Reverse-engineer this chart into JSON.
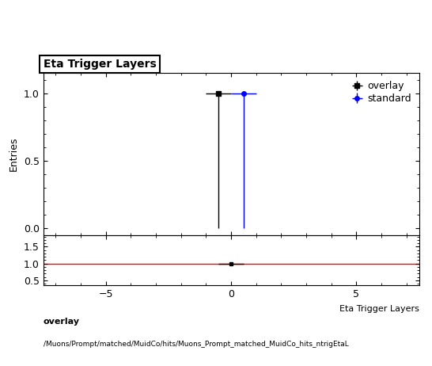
{
  "title": "Eta Trigger Layers",
  "xlabel": "Eta Trigger Layers",
  "ylabel": "Entries",
  "xlim": [
    -7.5,
    7.5
  ],
  "ylim_main": [
    -0.05,
    1.15
  ],
  "ylim_ratio": [
    0.35,
    1.85
  ],
  "ratio_yticks": [
    0.5,
    1.0,
    1.5
  ],
  "overlay_x": -0.5,
  "overlay_y": 1.0,
  "overlay_xerr": 0.5,
  "overlay_yerr_low": 1.0,
  "overlay_yerr_high": 0.0,
  "standard_x": 0.5,
  "standard_y": 1.0,
  "standard_xerr": 0.5,
  "standard_yerr_low": 1.0,
  "standard_yerr_high": 0.0,
  "overlay_color": "#000000",
  "standard_color": "#0000ff",
  "ratio_x": 0.0,
  "ratio_y": 1.0,
  "ratio_xerr_low": 0.5,
  "ratio_xerr_high": 0.5,
  "ratio_yerr_low": 0.0,
  "ratio_yerr_high": 0.0,
  "ratio_line_color": "#ff0000",
  "footer_line1": "overlay",
  "footer_line2": "/Muons/Prompt/matched/MuidCo/hits/Muons_Prompt_matched_MuidCo_hits_ntrigEtaL",
  "main_xticks": [
    -5,
    0,
    5
  ],
  "ratio_xticks": [
    -5,
    0,
    5
  ],
  "main_yticks": [
    0,
    0.5,
    1
  ],
  "legend_overlay": "overlay",
  "legend_standard": "standard",
  "background_color": "#ffffff"
}
